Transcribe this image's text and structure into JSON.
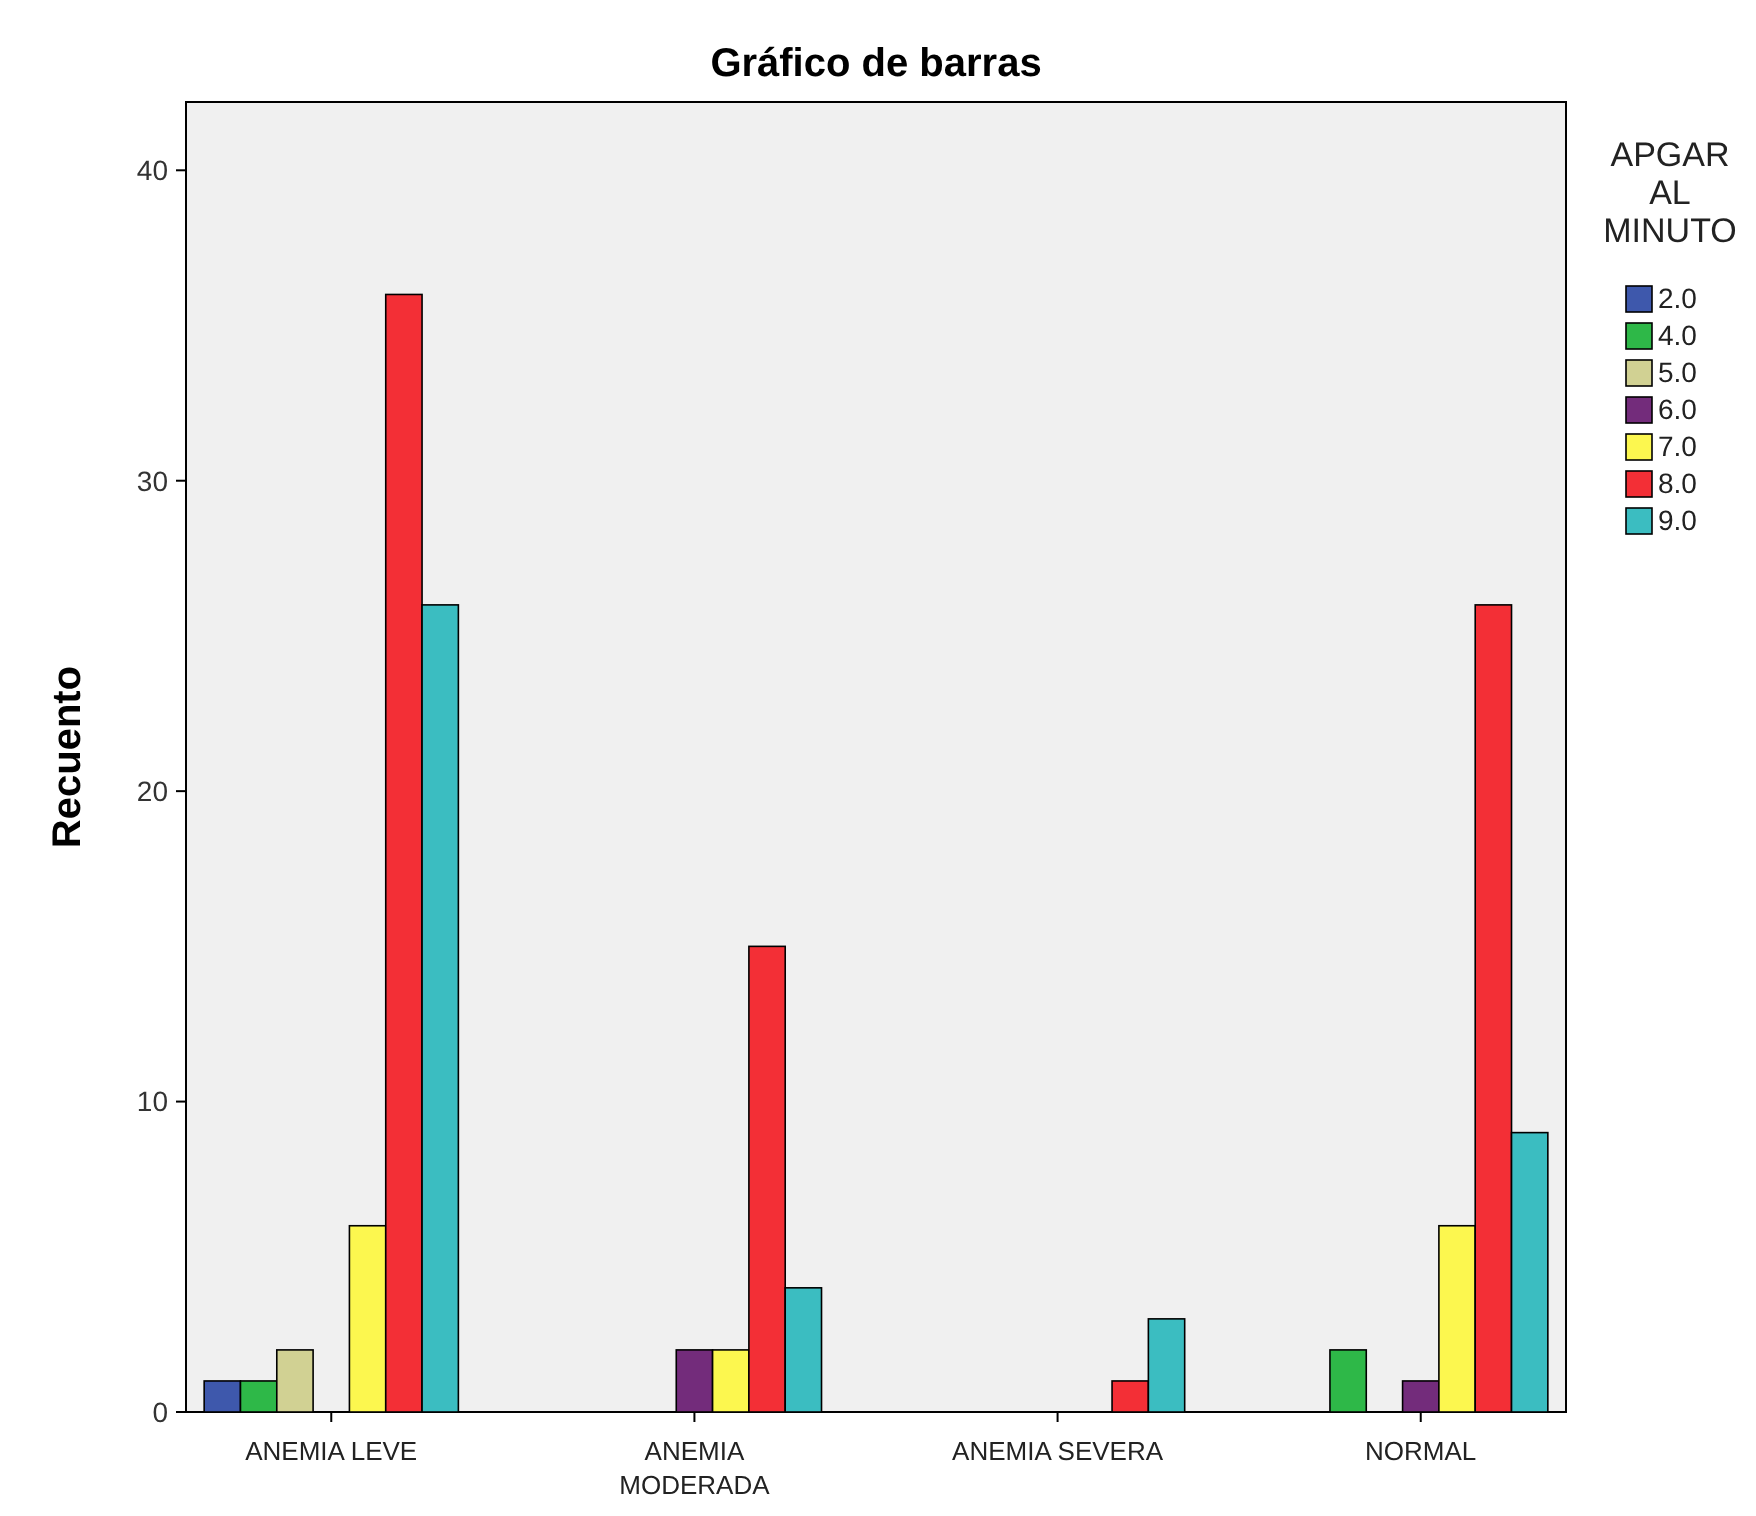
{
  "chart_data": {
    "type": "bar",
    "title": "Gráfico de barras",
    "ylabel": "Recuento",
    "legend_title": "APGAR AL MINUTO",
    "categories": [
      "ANEMIA LEVE",
      "ANEMIA MODERADA",
      "ANEMIA SEVERA",
      "NORMAL"
    ],
    "series": [
      {
        "name": "2.0",
        "color": "#3e58ac",
        "values": [
          1,
          null,
          null,
          null
        ]
      },
      {
        "name": "4.0",
        "color": "#2eb848",
        "values": [
          1,
          null,
          null,
          2
        ]
      },
      {
        "name": "5.0",
        "color": "#d1d193",
        "values": [
          2,
          null,
          null,
          null
        ]
      },
      {
        "name": "6.0",
        "color": "#732c7b",
        "values": [
          null,
          2,
          null,
          1
        ]
      },
      {
        "name": "7.0",
        "color": "#fcf74f",
        "values": [
          6,
          2,
          null,
          6
        ]
      },
      {
        "name": "8.0",
        "color": "#f32f36",
        "values": [
          36,
          15,
          1,
          26
        ]
      },
      {
        "name": "9.0",
        "color": "#3bbdc1",
        "values": [
          26,
          4,
          3,
          9
        ]
      }
    ],
    "ylim": [
      0,
      42.2
    ],
    "yticks": [
      0,
      10,
      20,
      30,
      40
    ],
    "grid": false,
    "legend": "top right"
  }
}
